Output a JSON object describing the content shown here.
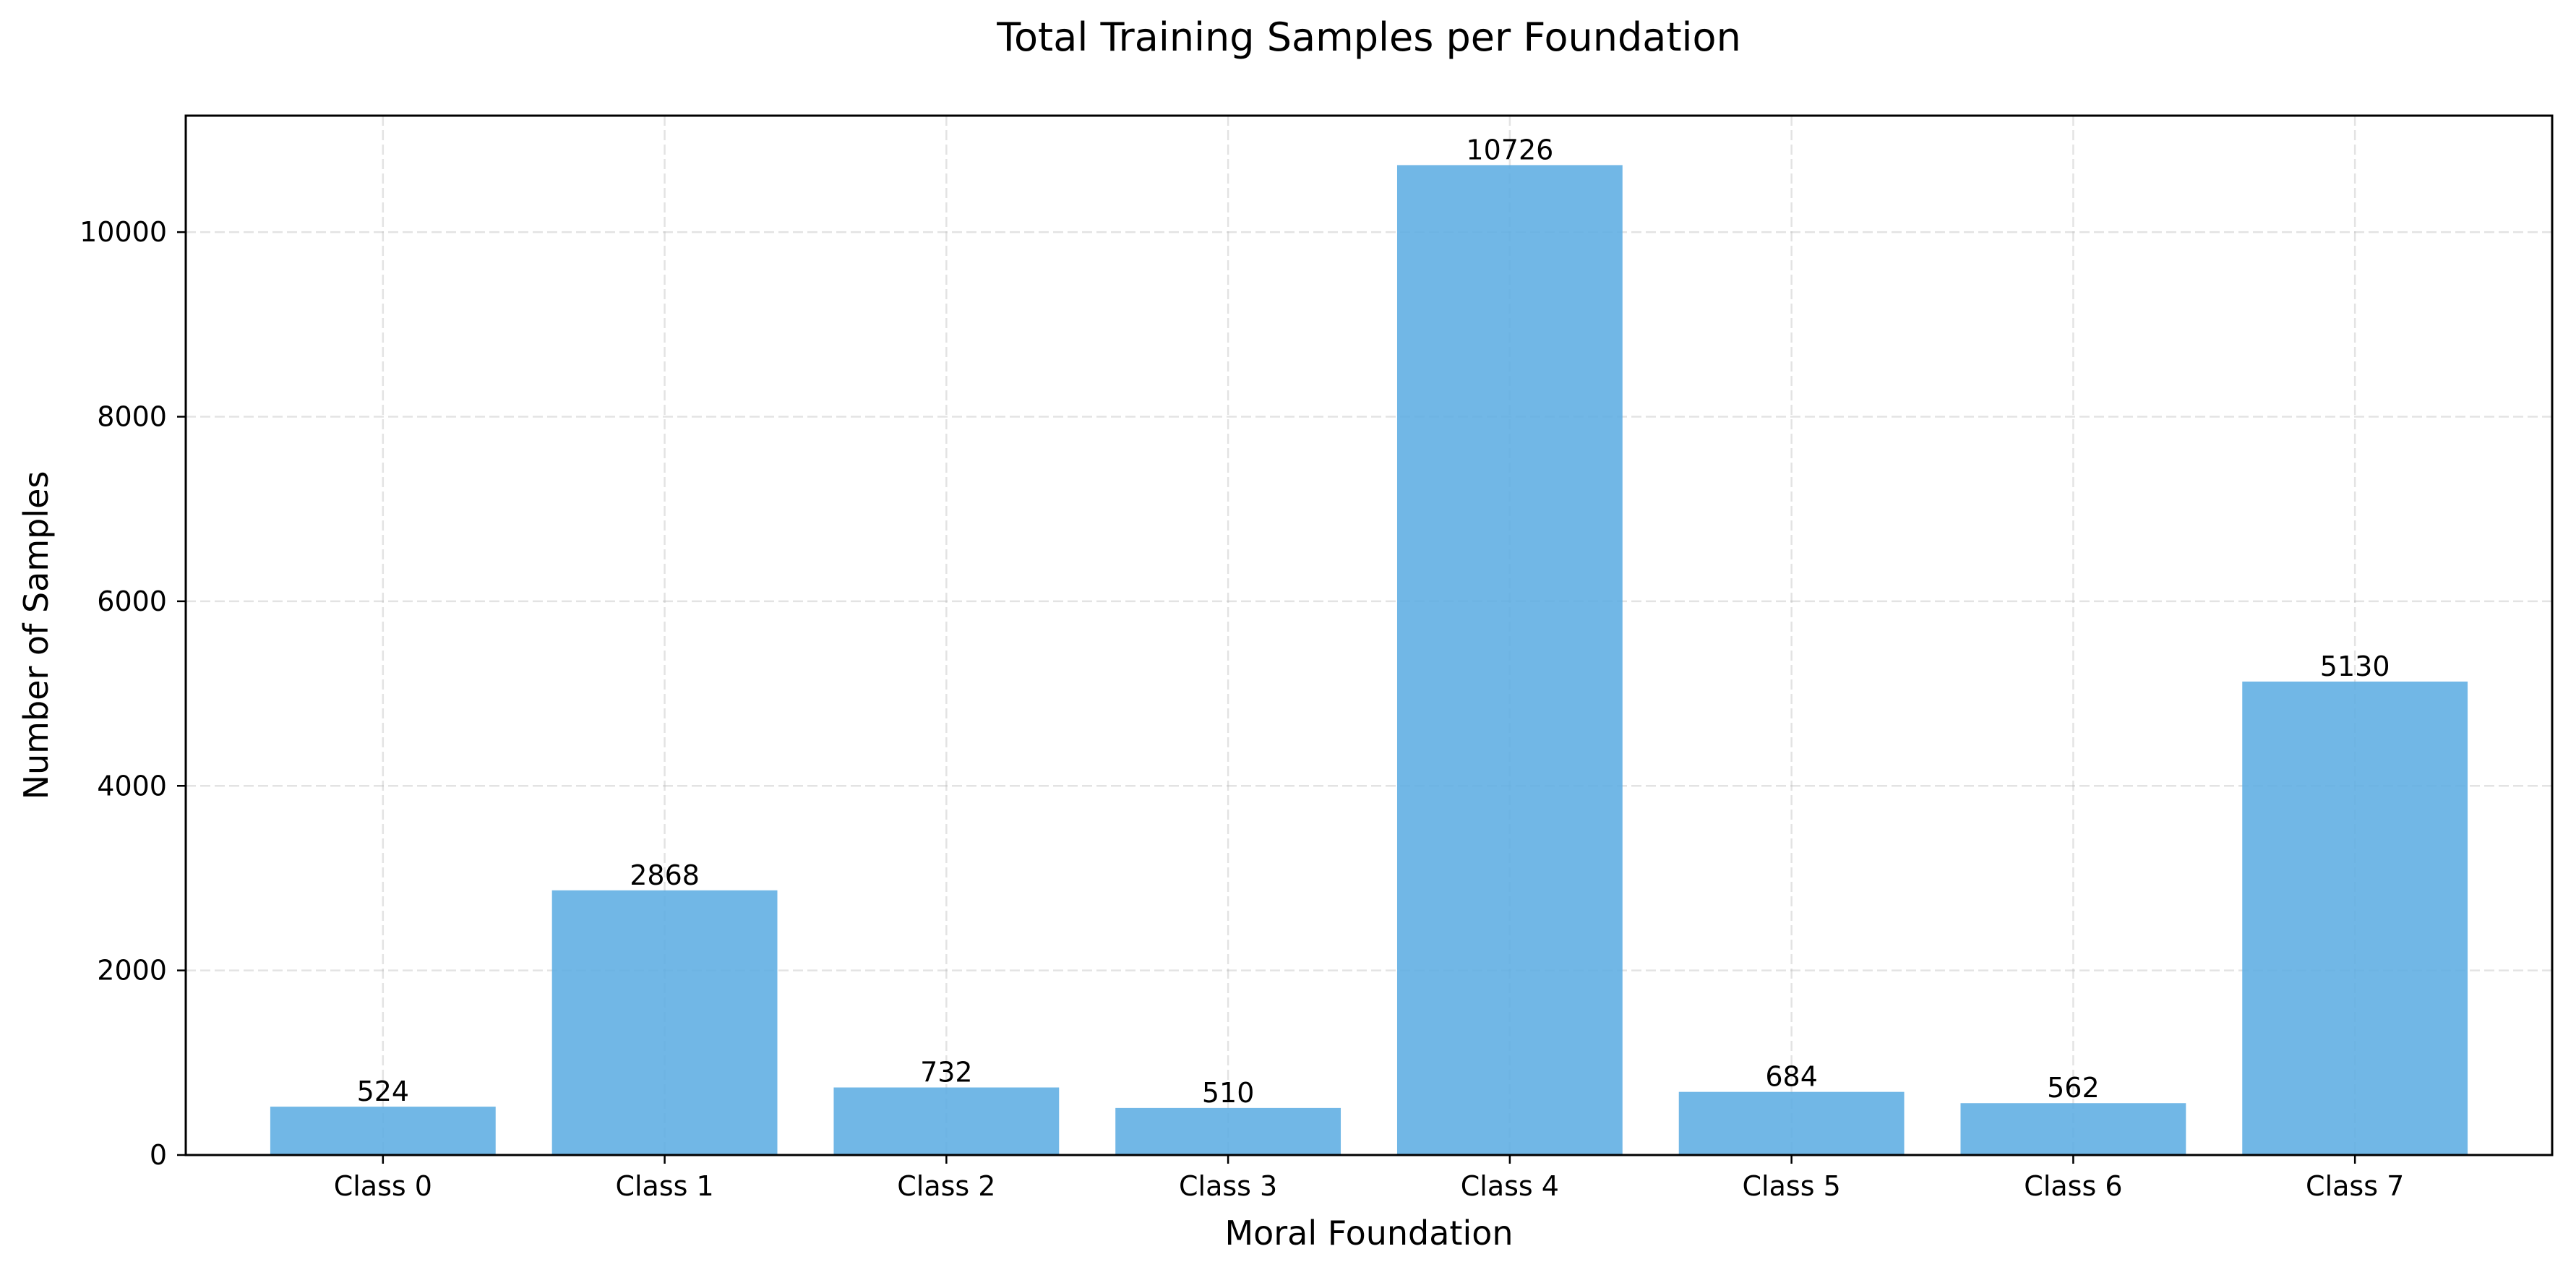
{
  "chart_data": {
    "type": "bar",
    "title": "Total Training Samples per Foundation",
    "xlabel": "Moral Foundation",
    "ylabel": "Number of Samples",
    "categories": [
      "Class 0",
      "Class 1",
      "Class 2",
      "Class 3",
      "Class 4",
      "Class 5",
      "Class 6",
      "Class 7"
    ],
    "values": [
      524,
      2868,
      732,
      510,
      10726,
      684,
      562,
      5130
    ],
    "data_labels": [
      "524",
      "2868",
      "732",
      "510",
      "10726",
      "684",
      "562",
      "5130"
    ],
    "ylim": [
      0,
      11262
    ],
    "yticks": [
      0,
      2000,
      4000,
      6000,
      8000,
      10000
    ],
    "ytick_labels": [
      "0",
      "2000",
      "4000",
      "6000",
      "8000",
      "10000"
    ],
    "grid": true,
    "legend": "none",
    "colors": {
      "bar": "#5dade2",
      "bar_opacity": 0.88,
      "text": "#000000",
      "grid": "#b0b0b0"
    }
  }
}
